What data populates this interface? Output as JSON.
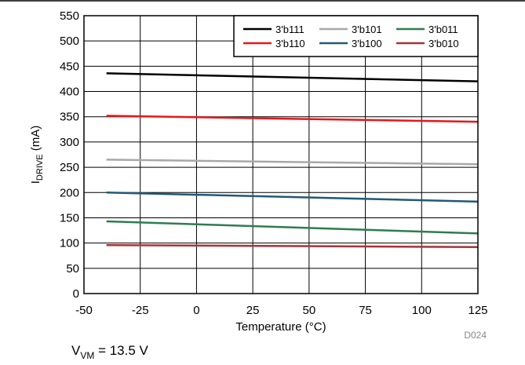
{
  "chart_data": {
    "type": "line",
    "xlabel": "Temperature (°C)",
    "ylabel_main": "I",
    "ylabel_sub": "DRIVE",
    "ylabel_unit": " (mA)",
    "xlim": [
      -50,
      125
    ],
    "ylim": [
      0,
      550
    ],
    "xticks": [
      -50,
      -25,
      0,
      25,
      50,
      75,
      100,
      125
    ],
    "yticks": [
      0,
      50,
      100,
      150,
      200,
      250,
      300,
      350,
      400,
      450,
      500,
      550
    ],
    "grid": true,
    "legend_position": "top-right",
    "x": [
      -40,
      125
    ],
    "series": [
      {
        "name": "3'b111",
        "color": "#000000",
        "values": [
          436,
          420
        ]
      },
      {
        "name": "3'b101",
        "color": "#a8a8a8",
        "values": [
          265,
          256
        ]
      },
      {
        "name": "3'b011",
        "color": "#2e7d4f",
        "values": [
          143,
          119
        ]
      },
      {
        "name": "3'b110",
        "color": "#e8161b",
        "values": [
          352,
          340
        ]
      },
      {
        "name": "3'b100",
        "color": "#215a75",
        "values": [
          200,
          182
        ]
      },
      {
        "name": "3'b010",
        "color": "#a8323a",
        "values": [
          96,
          92
        ]
      }
    ],
    "figure_id": "D024",
    "condition": {
      "main": "V",
      "sub": "VM",
      "rest": " = 13.5 V"
    }
  }
}
